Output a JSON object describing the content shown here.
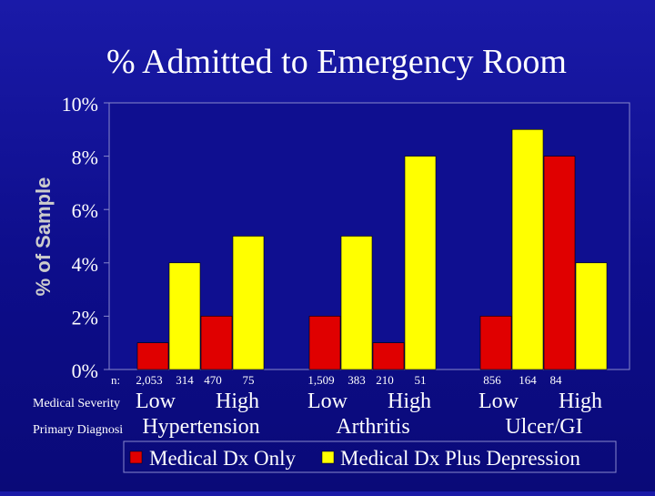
{
  "chart_data": {
    "type": "bar",
    "title": "% Admitted to Emergency Room",
    "ylabel": "% of Sample",
    "ylim": [
      0,
      10
    ],
    "yticks": [
      "0%",
      "2%",
      "4%",
      "6%",
      "8%",
      "10%"
    ],
    "ytick_values": [
      0,
      2,
      4,
      6,
      8,
      10
    ],
    "row_labels": {
      "n": "n:",
      "severity": "Medical Severity",
      "diagnosis": "Primary Diagnosi"
    },
    "groups": [
      {
        "diagnosis": "Hypertension",
        "levels": [
          {
            "severity": "Low",
            "values": [
              1,
              4
            ],
            "n": [
              "2,053",
              "314"
            ]
          },
          {
            "severity": "High",
            "values": [
              2,
              5
            ],
            "n": [
              "470",
              "75"
            ]
          }
        ]
      },
      {
        "diagnosis": "Arthritis",
        "levels": [
          {
            "severity": "Low",
            "values": [
              2,
              5
            ],
            "n": [
              "1,509",
              "383"
            ]
          },
          {
            "severity": "High",
            "values": [
              1,
              8
            ],
            "n": [
              "210",
              "51"
            ]
          }
        ]
      },
      {
        "diagnosis": "Ulcer/GI",
        "levels": [
          {
            "severity": "Low",
            "values": [
              2,
              9
            ],
            "n": [
              "856",
              "164"
            ]
          },
          {
            "severity": "High",
            "values": [
              8,
              4
            ],
            "n": [
              "84",
              ""
            ]
          }
        ]
      }
    ],
    "series": [
      {
        "name": "Medical Dx Only",
        "color": "#e00000"
      },
      {
        "name": "Medical Dx Plus Depression",
        "color": "#ffff00"
      }
    ],
    "grid": false,
    "legend_placement": "bottom"
  }
}
